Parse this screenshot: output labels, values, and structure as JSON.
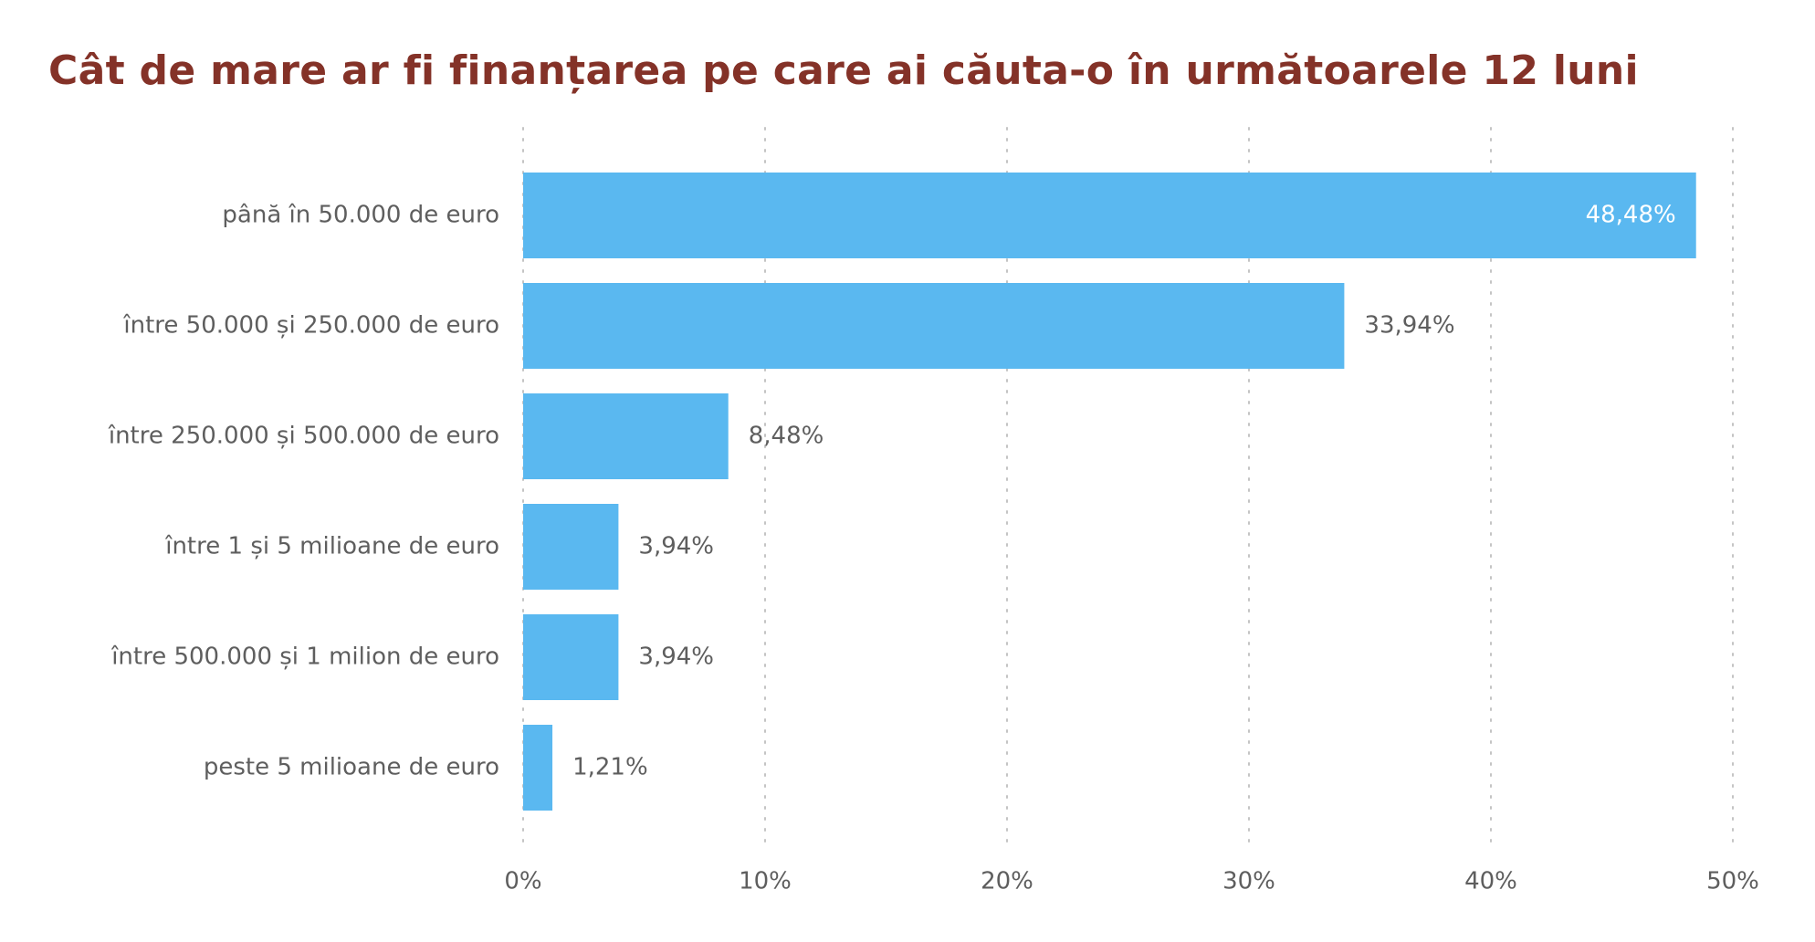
{
  "chart_data": {
    "type": "bar",
    "orientation": "horizontal",
    "title": "Cât de mare ar fi finanțarea pe care ai căuta-o în următoarele 12 luni",
    "categories": [
      "până în 50.000 de euro",
      "între 50.000 și 250.000 de euro",
      "între 250.000 și 500.000 de euro",
      "între 1 și 5 milioane de euro",
      "între 500.000 și 1 milion de euro",
      "peste 5 milioane de euro"
    ],
    "values": [
      48.48,
      33.94,
      8.48,
      3.94,
      3.94,
      1.21
    ],
    "value_labels": [
      "48,48%",
      "33,94%",
      "8,48%",
      "3,94%",
      "3,94%",
      "1,21%"
    ],
    "xlim": [
      0,
      50
    ],
    "xticks": [
      0,
      10,
      20,
      30,
      40,
      50
    ],
    "xtick_labels": [
      "0%",
      "10%",
      "20%",
      "30%",
      "40%",
      "50%"
    ],
    "xlabel": "",
    "ylabel": "",
    "grid": "vertical dotted",
    "legend": "none",
    "colors": {
      "bar": "#5ab8f0",
      "title": "#843228",
      "text": "#5e5e5e",
      "inside_label": "#ffffff",
      "grid": "#c4c4c4"
    }
  }
}
